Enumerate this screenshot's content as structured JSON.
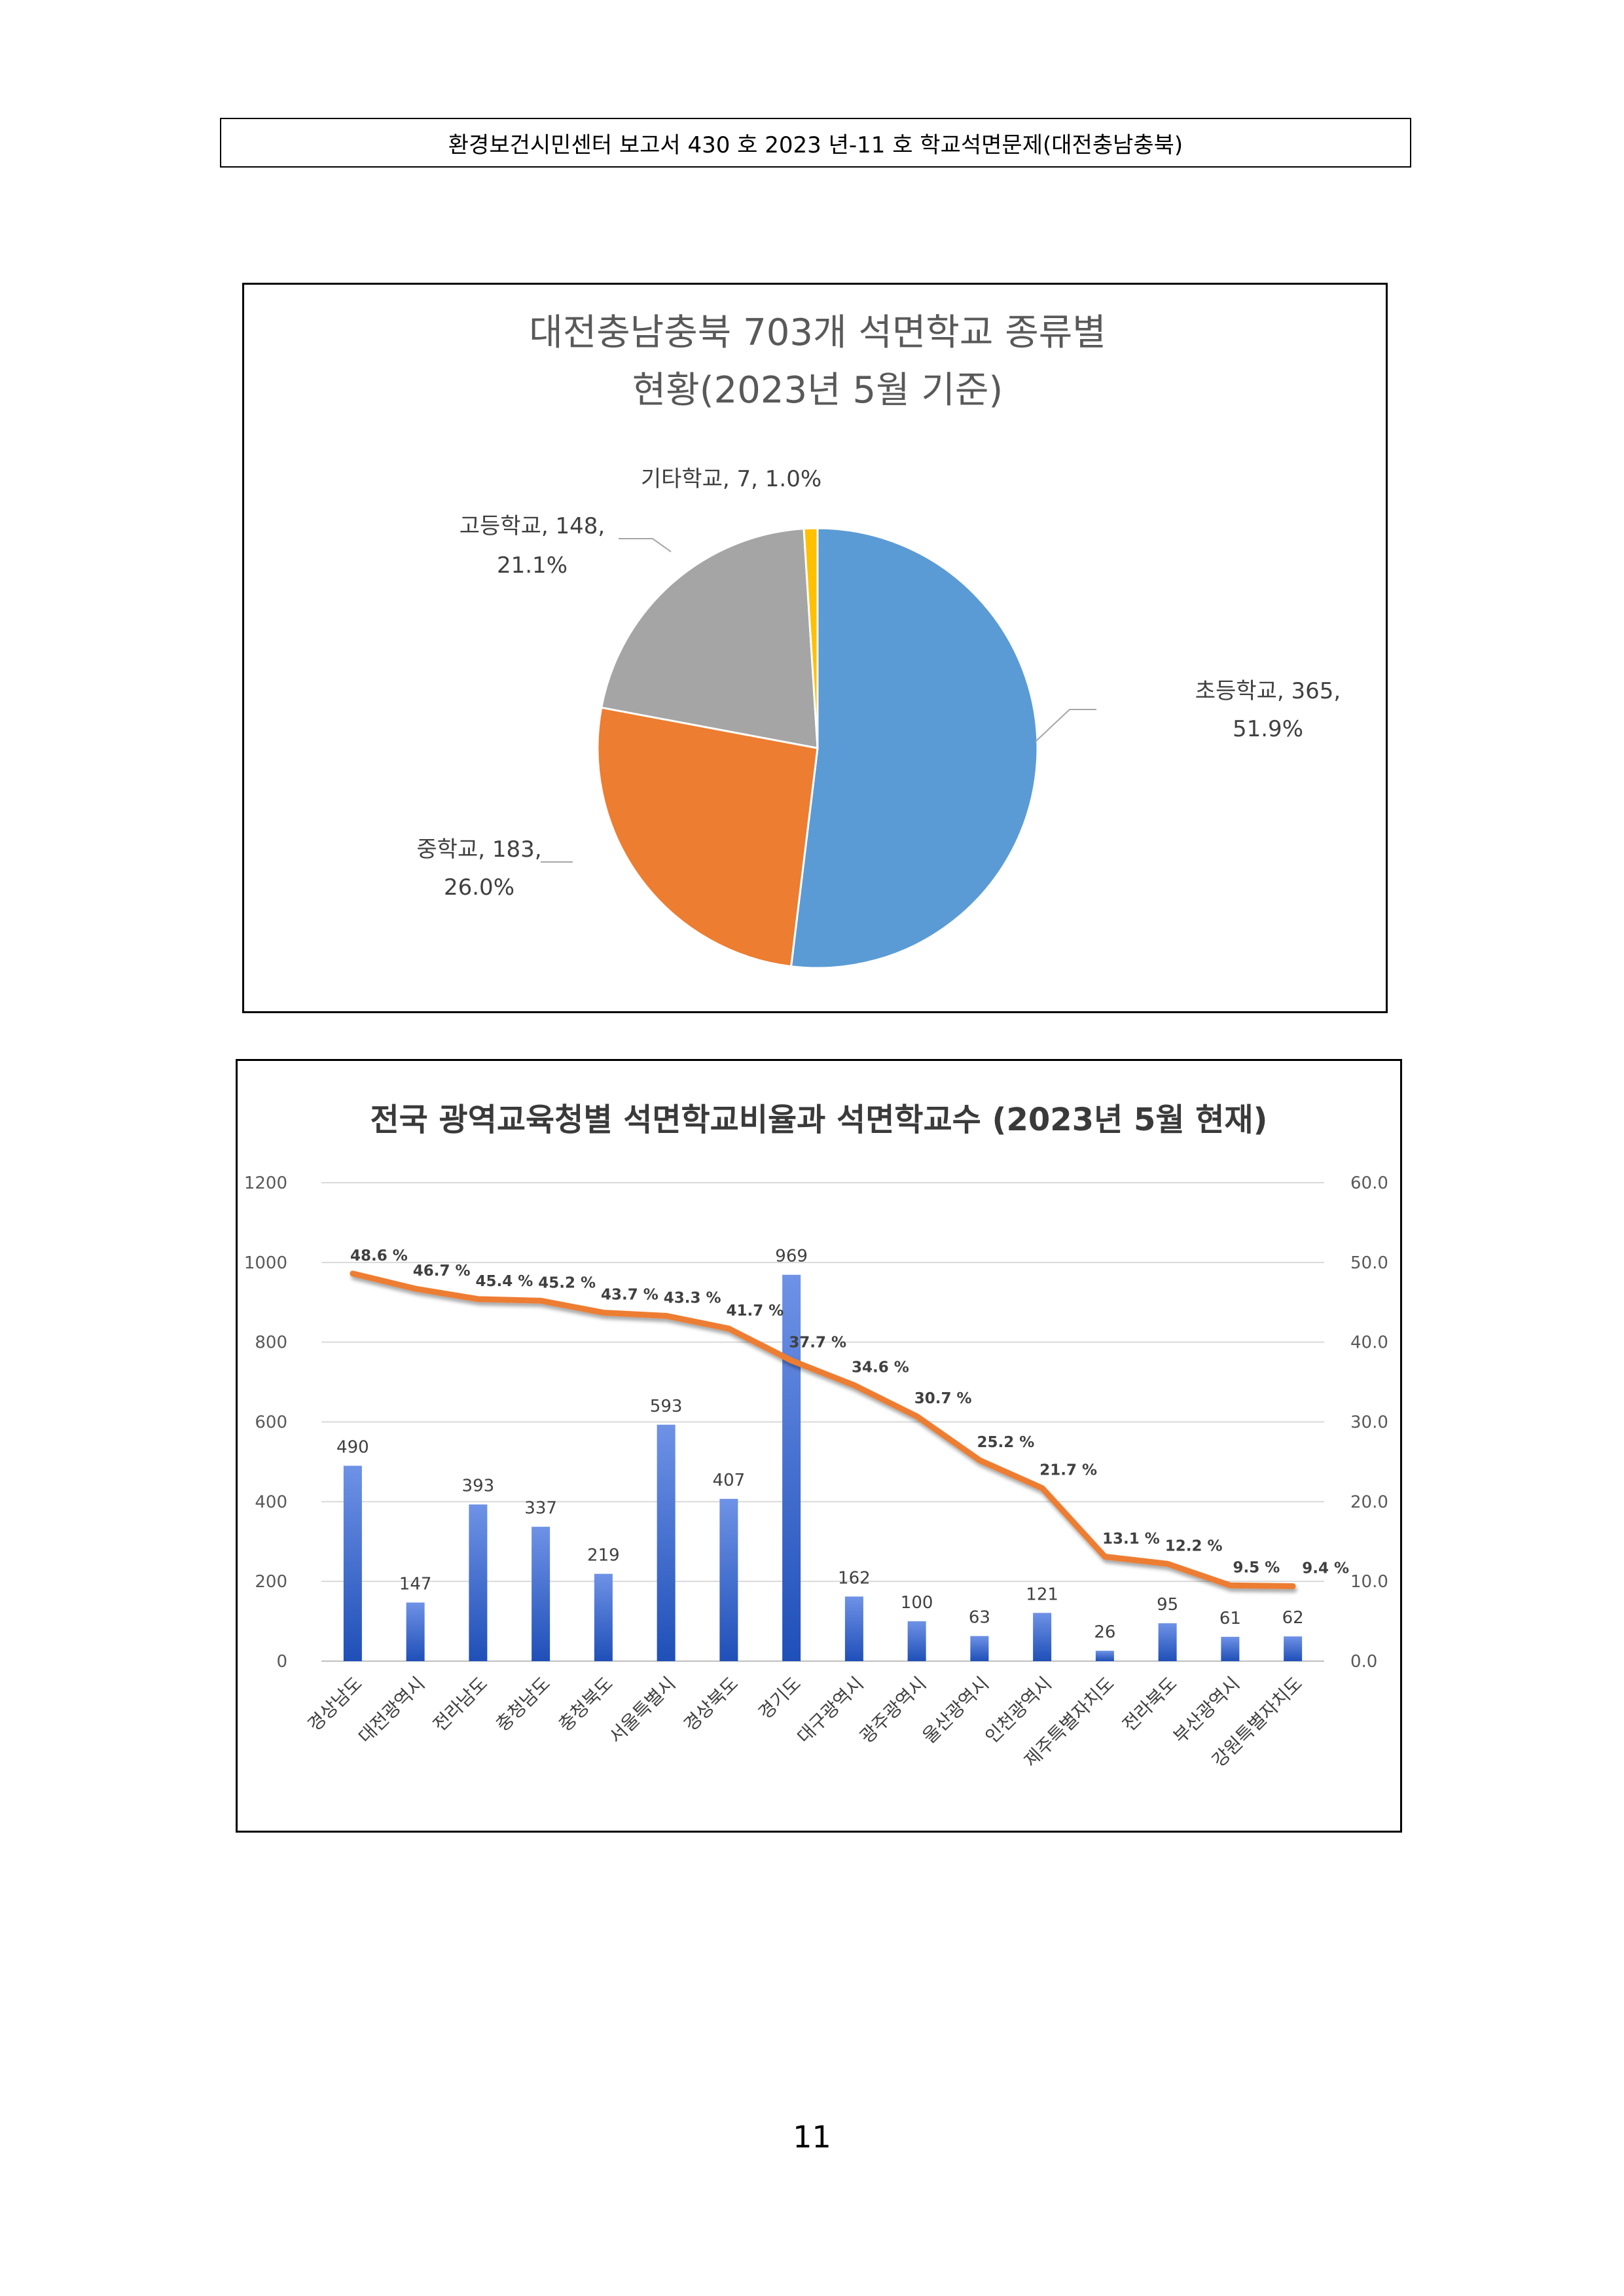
{
  "header": {
    "text": "환경보건시민센터 보고서 430 호 2023 년-11 호 학교석면문제(대전충남충북)"
  },
  "page_number": "11",
  "chart_data": [
    {
      "type": "pie",
      "title_lines": [
        "대전충남충북 703개 석면학교 종류별",
        "현황(2023년 5월 기준)"
      ],
      "slices": [
        {
          "name": "초등학교",
          "value": 365,
          "percent": "51.9%",
          "color": "#5B9BD5"
        },
        {
          "name": "중학교",
          "value": 183,
          "percent": "26.0%",
          "color": "#ED7D31"
        },
        {
          "name": "고등학교",
          "value": 148,
          "percent": "21.1%",
          "color": "#A5A5A5"
        },
        {
          "name": "기타학교",
          "value": 7,
          "percent": "1.0%",
          "color": "#FFC000"
        }
      ],
      "labels": [
        {
          "line1": "초등학교, 365,",
          "line2": "51.9%"
        },
        {
          "line1": "중학교, 183,",
          "line2": "26.0%"
        },
        {
          "line1": "고등학교, 148,",
          "line2": "21.1%"
        },
        {
          "line1": "기타학교, 7, 1.0%",
          "line2": ""
        }
      ]
    },
    {
      "type": "bar",
      "title": "전국 광역교육청별 석면학교비율과 석면학교수 (2023년 5월 현재)",
      "categories": [
        "경상남도",
        "대전광역시",
        "전라남도",
        "충청남도",
        "충청북도",
        "서울특별시",
        "경상북도",
        "경기도",
        "대구광역시",
        "광주광역시",
        "울산광역시",
        "인천광역시",
        "제주특별자치도",
        "전라북도",
        "부산광역시",
        "강원특별자치도"
      ],
      "values": [
        490,
        147,
        393,
        337,
        219,
        593,
        407,
        969,
        162,
        100,
        63,
        121,
        26,
        95,
        61,
        62
      ],
      "value_labels": [
        "490",
        "147",
        "393",
        "337",
        "219",
        "593",
        "407",
        "969",
        "162",
        "100",
        "63",
        "121",
        "26",
        "95",
        "61",
        "62"
      ],
      "line_values": [
        48.6,
        46.7,
        45.4,
        45.2,
        43.7,
        43.3,
        41.7,
        37.7,
        34.6,
        30.7,
        25.2,
        21.7,
        13.1,
        12.2,
        9.5,
        9.4
      ],
      "line_labels": [
        "48.6 %",
        "46.7 %",
        "45.4 %",
        "45.2 %",
        "43.7 %",
        "43.3 %",
        "41.7 %",
        "37.7 %",
        "34.6 %",
        "30.7 %",
        "25.2 %",
        "21.7 %",
        "13.1 %",
        "12.2 %",
        "9.5 %",
        "9.4 %"
      ],
      "ylim": [
        0,
        1200
      ],
      "y_ticks": [
        "0",
        "200",
        "400",
        "600",
        "800",
        "1000",
        "1200"
      ],
      "y2lim": [
        0,
        60
      ],
      "y2_ticks": [
        "0.0",
        "10.0",
        "20.0",
        "30.0",
        "40.0",
        "50.0",
        "60.0"
      ],
      "grid": true,
      "bar_color": "#2F5FC4",
      "line_color": "#ED7D31"
    }
  ]
}
